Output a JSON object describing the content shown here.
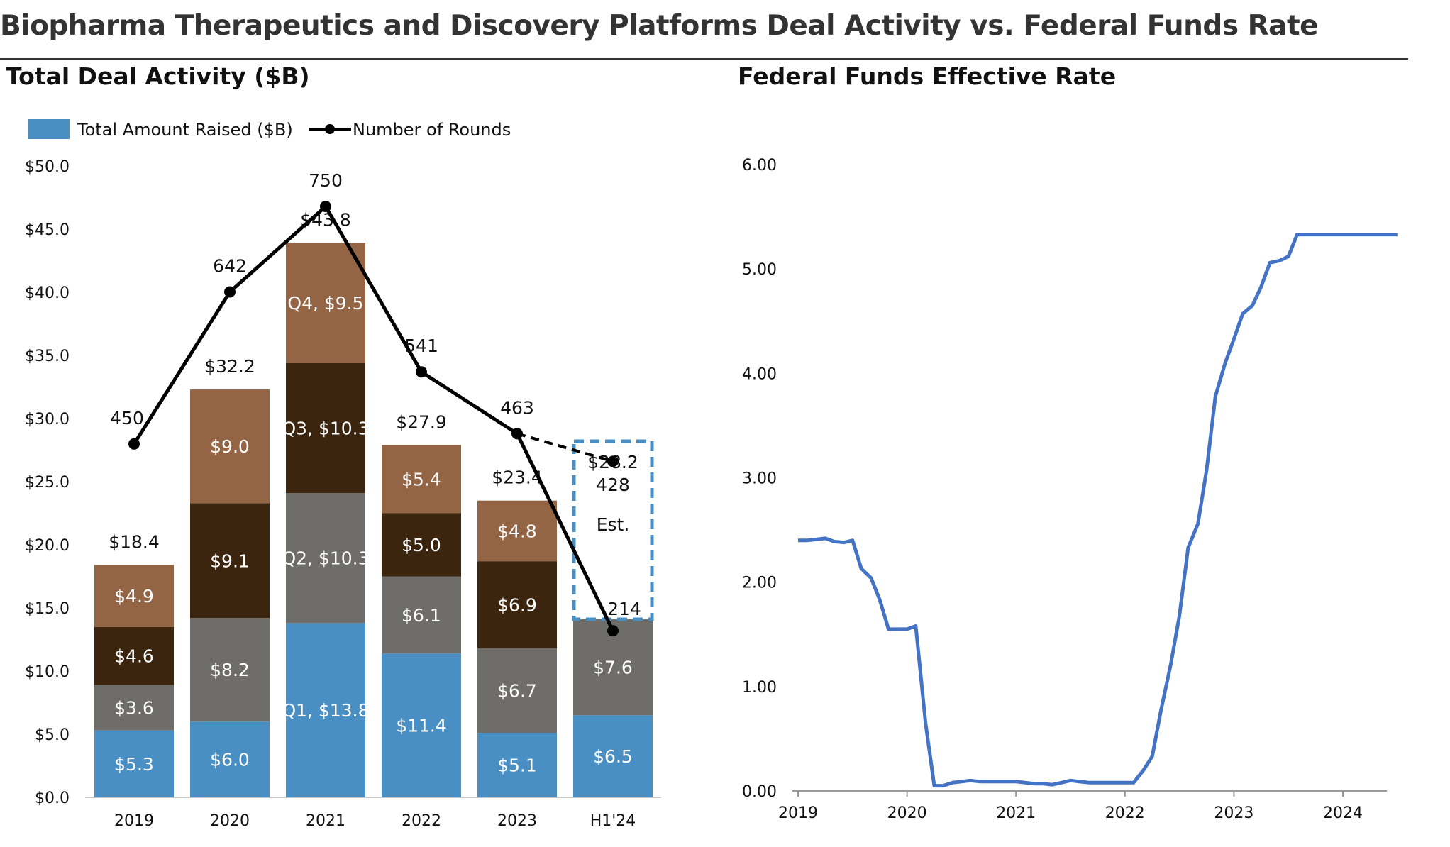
{
  "main_title": "Biopharma Therapeutics and Discovery Platforms Deal Activity vs. Federal Funds Rate",
  "colors": {
    "q1": "#4a8fc3",
    "q2": "#6e6d6a",
    "q3": "#3b250f",
    "q4": "#946545",
    "line": "#000000",
    "rate": "#4472c4",
    "estimate_box": "#4a8fc3"
  },
  "chart_data": [
    {
      "type": "bar",
      "stacked": true,
      "title": "Total Deal Activity ($B)",
      "legend": {
        "bar_label": "Total Amount Raised ($B)",
        "line_label": "Number of Rounds",
        "placement": "top-left"
      },
      "categories": [
        "2019",
        "2020",
        "2021",
        "2022",
        "2023",
        "H1'24"
      ],
      "ylim": [
        0,
        50
      ],
      "yticks": [
        "$0.0",
        "$5.0",
        "$10.0",
        "$15.0",
        "$20.0",
        "$25.0",
        "$30.0",
        "$35.0",
        "$40.0",
        "$45.0",
        "$50.0"
      ],
      "series": [
        {
          "name": "Q1",
          "values": [
            5.3,
            6.0,
            13.8,
            11.4,
            5.1,
            6.5
          ],
          "labels": [
            "$5.3",
            "$6.0",
            "Q1, $13.8",
            "$11.4",
            "$5.1",
            "$6.5"
          ]
        },
        {
          "name": "Q2",
          "values": [
            3.6,
            8.2,
            10.3,
            6.1,
            6.7,
            7.6
          ],
          "labels": [
            "$3.6",
            "$8.2",
            "Q2, $10.3",
            "$6.1",
            "$6.7",
            "$7.6"
          ]
        },
        {
          "name": "Q3",
          "values": [
            4.6,
            9.1,
            10.3,
            5.0,
            6.9,
            null
          ],
          "labels": [
            "$4.6",
            "$9.1",
            "Q3, $10.3",
            "$5.0",
            "$6.9",
            ""
          ]
        },
        {
          "name": "Q4",
          "values": [
            4.9,
            9.0,
            9.5,
            5.4,
            4.8,
            null
          ],
          "labels": [
            "$4.9",
            "$9.0",
            "Q4, $9.5",
            "$5.4",
            "$4.8",
            ""
          ]
        }
      ],
      "totals": [
        "$18.4",
        "$32.2",
        "$43.8",
        "$27.9",
        "$23.4",
        ""
      ],
      "estimate": {
        "category": "H1'24",
        "total": 28.2,
        "total_label": "$28.2",
        "rounds": 428,
        "rounds_label": "428",
        "note": "Est."
      },
      "rounds": {
        "name": "Number of Rounds",
        "values": [
          450,
          642,
          750,
          541,
          463,
          214
        ],
        "labels": [
          "450",
          "642",
          "750",
          "541",
          "463",
          "214"
        ]
      }
    },
    {
      "type": "line",
      "title": "Federal Funds Effective Rate",
      "ylim": [
        0,
        6
      ],
      "yticks": [
        "0.00",
        "1.00",
        "2.00",
        "3.00",
        "4.00",
        "5.00",
        "6.00"
      ],
      "xlim": [
        2019,
        2024.55
      ],
      "xticks": [
        "2019",
        "2020",
        "2021",
        "2022",
        "2023",
        "2024"
      ],
      "series": [
        {
          "x": [
            2019.0,
            2019.08,
            2019.17,
            2019.25,
            2019.33,
            2019.42,
            2019.5,
            2019.58,
            2019.67,
            2019.75,
            2019.83,
            2019.92,
            2020.0,
            2020.08,
            2020.17,
            2020.25,
            2020.33,
            2020.42,
            2020.5,
            2020.58,
            2020.67,
            2020.75,
            2020.83,
            2020.92,
            2021.0,
            2021.08,
            2021.17,
            2021.25,
            2021.33,
            2021.42,
            2021.5,
            2021.58,
            2021.67,
            2021.75,
            2021.83,
            2021.92,
            2022.0,
            2022.08,
            2022.17,
            2022.25,
            2022.33,
            2022.42,
            2022.5,
            2022.58,
            2022.67,
            2022.75,
            2022.83,
            2022.92,
            2023.0,
            2023.08,
            2023.17,
            2023.25,
            2023.33,
            2023.42,
            2023.5,
            2023.58,
            2023.67,
            2023.75,
            2023.83,
            2023.92,
            2024.0,
            2024.08,
            2024.17,
            2024.25,
            2024.33,
            2024.42,
            2024.5
          ],
          "y": [
            2.4,
            2.4,
            2.41,
            2.42,
            2.39,
            2.38,
            2.4,
            2.13,
            2.04,
            1.83,
            1.55,
            1.55,
            1.55,
            1.58,
            0.65,
            0.05,
            0.05,
            0.08,
            0.09,
            0.1,
            0.09,
            0.09,
            0.09,
            0.09,
            0.09,
            0.08,
            0.07,
            0.07,
            0.06,
            0.08,
            0.1,
            0.09,
            0.08,
            0.08,
            0.08,
            0.08,
            0.08,
            0.08,
            0.2,
            0.33,
            0.77,
            1.21,
            1.68,
            2.33,
            2.56,
            3.08,
            3.78,
            4.1,
            4.33,
            4.57,
            4.65,
            4.83,
            5.06,
            5.08,
            5.12,
            5.33,
            5.33,
            5.33,
            5.33,
            5.33,
            5.33,
            5.33,
            5.33,
            5.33,
            5.33,
            5.33,
            5.33
          ]
        }
      ]
    }
  ]
}
